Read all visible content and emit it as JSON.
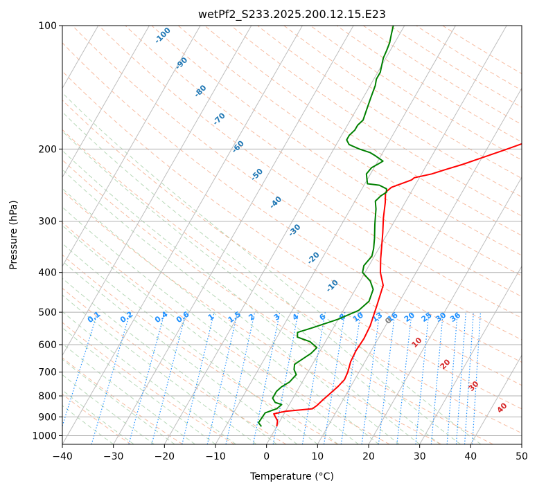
{
  "chart_data": {
    "type": "line",
    "subtype": "skew-T log-P thermodynamic diagram",
    "title": "wetPf2_S233.2025.200.12.15.E23",
    "xlabel": "Temperature (°C)",
    "ylabel": "Pressure (hPa)",
    "xlim": [
      -40,
      50
    ],
    "ylim": [
      1050,
      100
    ],
    "y_scale": "log",
    "x_ticks": [
      -40,
      -30,
      -20,
      -10,
      0,
      10,
      20,
      30,
      40,
      50
    ],
    "y_ticks": [
      1000,
      900,
      800,
      700,
      600,
      500,
      400,
      300,
      200,
      100
    ],
    "grid": true,
    "series": [
      {
        "color": "#ff0000",
        "points": [
          [
            0,
            950
          ],
          [
            -0.5,
            920
          ],
          [
            -2,
            885
          ],
          [
            0,
            872
          ],
          [
            3,
            865
          ],
          [
            5,
            860
          ],
          [
            5.5,
            845
          ],
          [
            6,
            820
          ],
          [
            6.5,
            800
          ],
          [
            7.5,
            760
          ],
          [
            8,
            730
          ],
          [
            7.8,
            700
          ],
          [
            7.2,
            660
          ],
          [
            7,
            620
          ],
          [
            7.2,
            580
          ],
          [
            7,
            540
          ],
          [
            6,
            480
          ],
          [
            5,
            430
          ],
          [
            3,
            400
          ],
          [
            1.5,
            370
          ],
          [
            0.3,
            345
          ],
          [
            -1,
            320
          ],
          [
            -2.5,
            295
          ],
          [
            -3.9,
            270
          ],
          [
            -5,
            255
          ],
          [
            -4.4,
            248
          ],
          [
            -1.3,
            238
          ],
          [
            -1,
            235
          ],
          [
            2,
            230
          ],
          [
            4,
            225
          ],
          [
            7,
            218
          ],
          [
            10,
            210
          ],
          [
            14,
            200
          ],
          [
            18,
            190
          ],
          [
            20.5,
            180
          ],
          [
            22,
            170
          ],
          [
            24,
            160
          ],
          [
            27,
            150
          ],
          [
            31,
            140
          ],
          [
            34,
            130
          ],
          [
            36,
            125
          ],
          [
            39,
            115
          ],
          [
            42,
            105
          ],
          [
            44,
            100
          ]
        ]
      },
      {
        "color": "#008000",
        "points": [
          [
            -3,
            950
          ],
          [
            -4,
            930
          ],
          [
            -3.8,
            880
          ],
          [
            -2,
            860
          ],
          [
            -1.5,
            840
          ],
          [
            -3,
            830
          ],
          [
            -4,
            810
          ],
          [
            -4,
            780
          ],
          [
            -3.5,
            760
          ],
          [
            -2.5,
            740
          ],
          [
            -2,
            710
          ],
          [
            -3,
            690
          ],
          [
            -3.5,
            670
          ],
          [
            -2.5,
            650
          ],
          [
            -1.5,
            630
          ],
          [
            -1,
            610
          ],
          [
            -3,
            590
          ],
          [
            -6,
            575
          ],
          [
            -6.5,
            560
          ],
          [
            -4,
            545
          ],
          [
            0,
            520
          ],
          [
            3,
            495
          ],
          [
            4,
            470
          ],
          [
            3.5,
            440
          ],
          [
            2,
            420
          ],
          [
            -0.5,
            400
          ],
          [
            -1,
            385
          ],
          [
            -0.5,
            365
          ],
          [
            -1,
            350
          ],
          [
            -2,
            330
          ],
          [
            -3.5,
            305
          ],
          [
            -5,
            280
          ],
          [
            -6,
            268
          ],
          [
            -5.5,
            260
          ],
          [
            -4.8,
            255
          ],
          [
            -5.2,
            250
          ],
          [
            -7,
            245
          ],
          [
            -9.5,
            243
          ],
          [
            -10,
            238
          ],
          [
            -10.8,
            230
          ],
          [
            -10.5,
            222
          ],
          [
            -9.5,
            217
          ],
          [
            -9,
            214
          ],
          [
            -11,
            208
          ],
          [
            -12.5,
            204
          ],
          [
            -15,
            200
          ],
          [
            -17.5,
            195
          ],
          [
            -18.5,
            190
          ],
          [
            -18.5,
            185
          ],
          [
            -18,
            180
          ],
          [
            -18,
            175
          ],
          [
            -17.5,
            170
          ],
          [
            -18,
            160
          ],
          [
            -18.5,
            150
          ],
          [
            -19,
            140
          ],
          [
            -19.5,
            135
          ],
          [
            -19.5,
            130
          ],
          [
            -20,
            125
          ],
          [
            -20.5,
            120
          ],
          [
            -20.7,
            115
          ],
          [
            -21,
            110
          ],
          [
            -21.6,
            105
          ],
          [
            -22.2,
            100
          ]
        ]
      }
    ],
    "dry_adiabat_labels": [
      "-100",
      "-90",
      "-80",
      "-70",
      "-60",
      "-50",
      "-40",
      "-30",
      "-20",
      "-10"
    ],
    "mixing_ratio_labels": [
      "0.1",
      "0.2",
      "0.4",
      "0.6",
      "1",
      "1.5",
      "2",
      "3",
      "4",
      "6",
      "8",
      "10",
      "13",
      "16",
      "20",
      "25",
      "30",
      "36"
    ],
    "moist_adiabat_labels": [
      "0",
      "10",
      "20",
      "30",
      "40"
    ]
  }
}
